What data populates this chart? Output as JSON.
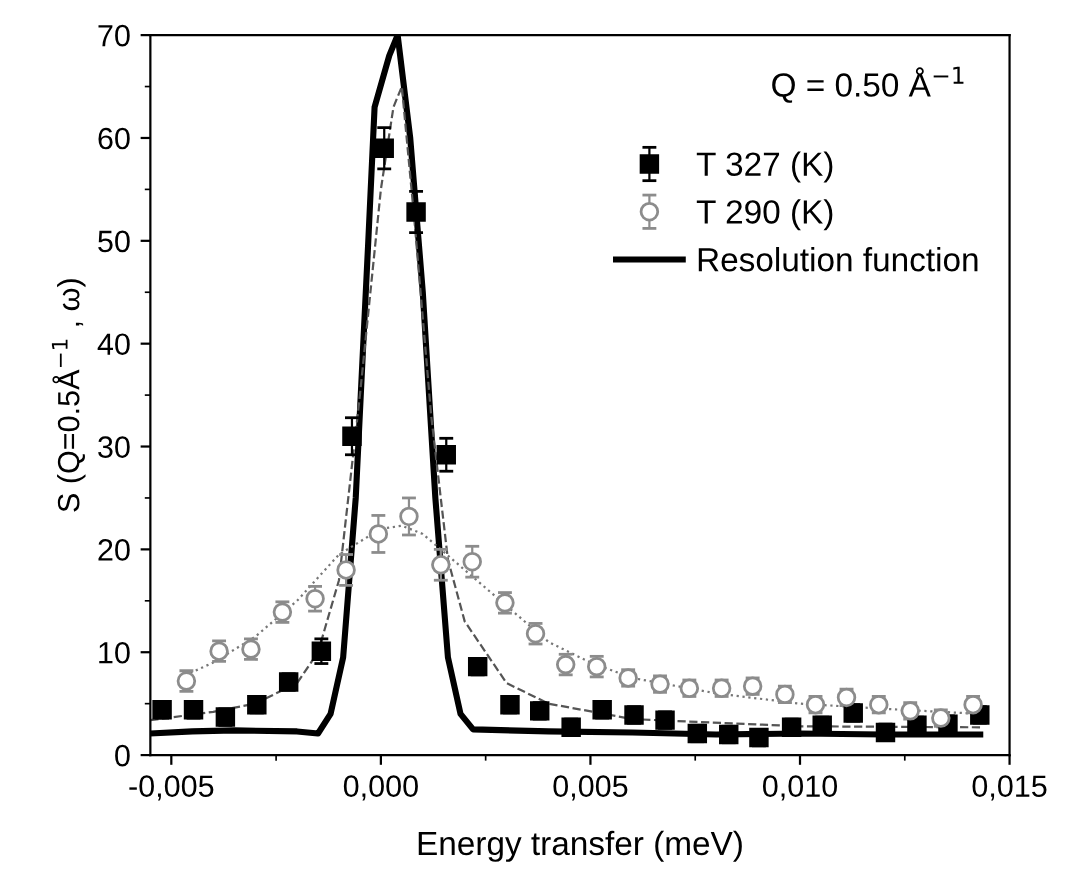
{
  "chart_data": {
    "type": "scatter",
    "xlabel": "Energy transfer (meV)",
    "ylabel": "S (Q=0.5Å$^{−1}$ , ω)",
    "annotations": [
      "Q = 0.50 Å$^{−1}$"
    ],
    "xlim": [
      -0.0055,
      0.015
    ],
    "ylim": [
      0,
      70
    ],
    "xticks": [
      {
        "value": -0.005,
        "label": "-0,005"
      },
      {
        "value": 0.0,
        "label": "0,000"
      },
      {
        "value": 0.005,
        "label": "0,005"
      },
      {
        "value": 0.01,
        "label": "0,010"
      },
      {
        "value": 0.015,
        "label": "0,015"
      }
    ],
    "yticks": [
      0,
      10,
      20,
      30,
      40,
      50,
      60,
      70
    ],
    "grid": false,
    "legend": "top right",
    "series": [
      {
        "name": "T 327 (K)",
        "marker": "square",
        "color": "#000000",
        "x": [
          -0.00522,
          -0.00447,
          -0.00371,
          -0.00296,
          -0.0022,
          -0.00142,
          -0.00069,
          8e-05,
          0.00084,
          0.00156,
          0.00231,
          0.00308,
          0.00379,
          0.00454,
          0.00528,
          0.00604,
          0.00678,
          0.00755,
          0.0083,
          0.00902,
          0.0098,
          0.01053,
          0.01127,
          0.01204,
          0.01279,
          0.01353,
          0.01429
        ],
        "values": [
          4.4,
          4.4,
          3.7,
          4.9,
          7.1,
          10.1,
          31,
          59,
          52.8,
          29.2,
          8.6,
          4.9,
          4.3,
          2.7,
          4.4,
          3.9,
          3.4,
          2.1,
          2.0,
          1.7,
          2.7,
          2.9,
          4.1,
          2.2,
          2.9,
          3.0,
          3.9
        ],
        "errors": [
          0.8,
          0.8,
          0.8,
          0.8,
          0.8,
          1.2,
          1.8,
          2,
          2,
          1.6,
          0.8,
          0.8,
          0.8,
          0.8,
          0.8,
          0.8,
          0.8,
          0.8,
          0.8,
          0.8,
          0.8,
          0.8,
          0.8,
          0.8,
          0.8,
          0.8,
          0.8
        ]
      },
      {
        "name": "T 290 (K)",
        "marker": "circle",
        "color": "#8c8c8c",
        "x": [
          -0.00464,
          -0.00386,
          -0.0031,
          -0.00235,
          -0.00157,
          -0.00083,
          -6e-05,
          0.00067,
          0.00143,
          0.00218,
          0.00296,
          0.00369,
          0.00441,
          0.00515,
          0.0059,
          0.00666,
          0.00736,
          0.00813,
          0.00887,
          0.00964,
          0.01037,
          0.01111,
          0.01188,
          0.01263,
          0.01336,
          0.01413
        ],
        "values": [
          7.2,
          10.1,
          10.3,
          13.9,
          15.2,
          18.0,
          21.5,
          23.2,
          18.5,
          18.8,
          14.8,
          11.8,
          8.8,
          8.6,
          7.5,
          6.9,
          6.5,
          6.5,
          6.7,
          5.9,
          4.9,
          5.6,
          4.9,
          4.3,
          3.6,
          4.9
        ],
        "errors": [
          1,
          1,
          1,
          1,
          1.2,
          1.5,
          1.8,
          1.8,
          1.5,
          1.5,
          1,
          1,
          1,
          1,
          0.8,
          0.8,
          0.8,
          0.8,
          0.8,
          0.8,
          0.8,
          0.8,
          0.8,
          0.8,
          0.8,
          0.8
        ]
      },
      {
        "name": "Resolution function",
        "type": "line",
        "line_style": "solid",
        "color": "#000000",
        "x": [
          -0.0055,
          -0.0045,
          -0.0035,
          -0.002,
          -0.0015,
          -0.0012,
          -0.0009,
          -0.0006,
          -0.0003,
          -0.00015,
          0.0002,
          0.0004,
          0.0007,
          0.001,
          0.0013,
          0.0016,
          0.0019,
          0.0022,
          0.004,
          0.006,
          0.008,
          0.01,
          0.012,
          0.0143
        ],
        "values": [
          2.1,
          2.3,
          2.4,
          2.3,
          2.1,
          4,
          9.5,
          25,
          50,
          63,
          68,
          70,
          60,
          45,
          25,
          9.5,
          4,
          2.5,
          2.3,
          2.2,
          2.0,
          2.1,
          2.0,
          2.0
        ]
      },
      {
        "type": "line",
        "line_style": "dashed",
        "color": "#555555",
        "x": [
          -0.0055,
          -0.004,
          -0.003,
          -0.002,
          -0.0015,
          -0.001,
          -0.0005,
          0,
          0.0003,
          0.0005,
          0.0008,
          0.0012,
          0.0016,
          0.002,
          0.003,
          0.004,
          0.006,
          0.01,
          0.0143
        ],
        "values": [
          3.4,
          4.2,
          5,
          7,
          10,
          17,
          35,
          55,
          63,
          65,
          52,
          33,
          19,
          13,
          7,
          5,
          3.5,
          2.8,
          2.7
        ]
      },
      {
        "type": "line",
        "line_style": "dotted",
        "color": "#777777",
        "x": [
          -0.0048,
          -0.004,
          -0.003,
          -0.002,
          -0.001,
          0,
          0.0005,
          0.001,
          0.002,
          0.003,
          0.004,
          0.005,
          0.006,
          0.008,
          0.01,
          0.012,
          0.0143
        ],
        "values": [
          7.5,
          9,
          11.5,
          15,
          19.5,
          22,
          22.3,
          21.5,
          18,
          14.5,
          11,
          9,
          7.5,
          6,
          5,
          4.5,
          4.0
        ]
      }
    ]
  }
}
